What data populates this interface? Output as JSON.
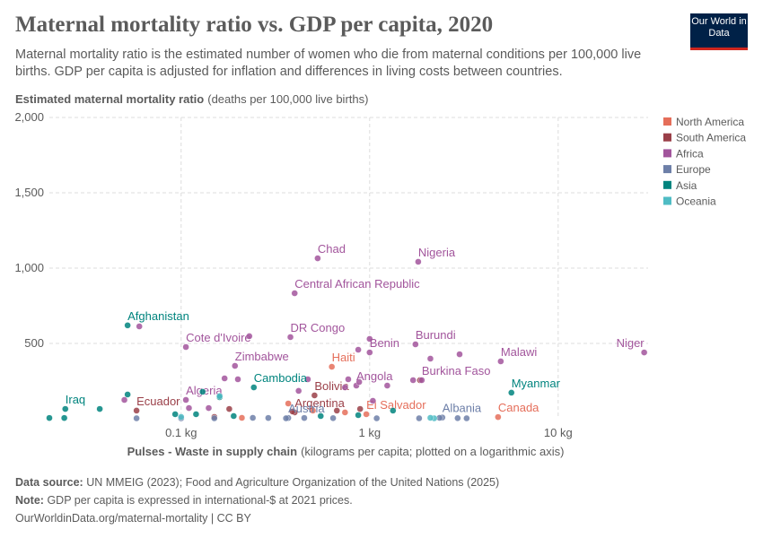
{
  "logo": "Our World in Data",
  "chart_data": {
    "type": "scatter",
    "title": "Maternal mortality ratio vs. GDP per capita, 2020",
    "subtitle": "Maternal mortality ratio is the estimated number of women who die from maternal conditions per 100,000 live births. GDP per capita is adjusted for inflation and differences in living costs between countries.",
    "y_label": "Estimated maternal mortality ratio",
    "y_label_unit": "(deaths per 100,000 live births)",
    "x_label": "Pulses - Waste in supply chain",
    "x_label_unit": "(kilograms per capita; plotted on a logarithmic axis)",
    "x_log": true,
    "grid": true,
    "legend_position": "right",
    "xlim": [
      0.02,
      30
    ],
    "xticks": [
      {
        "value": 0.1,
        "label": "0.1 kg"
      },
      {
        "value": 1,
        "label": "1 kg"
      },
      {
        "value": 10,
        "label": "10 kg"
      }
    ],
    "ylim": [
      0,
      2000
    ],
    "yticks": [
      500,
      {
        "value": 1000,
        "label": "1,000"
      },
      {
        "value": 1500,
        "label": "1,500"
      },
      {
        "value": 2000,
        "label": "2,000"
      }
    ],
    "series": [
      {
        "name": "North America",
        "color": "#e56e5a",
        "x": [
          0.63,
          0.96,
          4.8,
          0.37,
          0.5,
          0.21,
          0.74
        ],
        "values": [
          345,
          30,
          11,
          101,
          54,
          6,
          42
        ],
        "labels": [
          "Haiti",
          "El Salvador",
          "Canada",
          null,
          null,
          null,
          null
        ]
      },
      {
        "name": "South America",
        "color": "#9a3f48",
        "x": [
          0.51,
          0.058,
          0.4,
          0.15,
          0.18,
          0.39,
          0.67,
          0.89,
          1.85
        ],
        "values": [
          155,
          54,
          42,
          12,
          65,
          48,
          54,
          65,
          256
        ],
        "labels": [
          "Bolivia",
          "Ecuador",
          "Argentina",
          null,
          null,
          null,
          null,
          null,
          null
        ]
      },
      {
        "name": "Africa",
        "color": "#a2559c",
        "x": [
          0.53,
          1.81,
          0.4,
          0.38,
          1.0,
          1.75,
          0.106,
          28.6,
          4.96,
          0.193,
          1.89,
          0.85,
          0.106,
          0.87,
          1.0,
          2.1,
          3.0,
          0.23,
          0.47,
          0.42,
          0.77,
          1.04,
          1.24,
          1.7,
          0.17,
          0.2,
          0.14,
          0.11,
          0.06,
          0.05,
          0.74,
          0.88
        ],
        "values": [
          1065,
          1042,
          833,
          542,
          440,
          494,
          476,
          440,
          381,
          351,
          256,
          220,
          125,
          458,
          530,
          399,
          428,
          548,
          262,
          185,
          262,
          119,
          220,
          256,
          268,
          262,
          71,
          71,
          613,
          125,
          208,
          244
        ],
        "labels": [
          "Chad",
          "Nigeria",
          "Central African Republic",
          "DR Congo",
          "Benin",
          "Burundi",
          "Cote d'Ivoire",
          "Niger",
          "Malawi",
          "Zimbabwe",
          "Burkina Faso",
          "Angola",
          "Algeria",
          null,
          null,
          null,
          null,
          null,
          null,
          null,
          null,
          null,
          null,
          null,
          null,
          null,
          null,
          null,
          null,
          null,
          null,
          null
        ]
      },
      {
        "name": "Europe",
        "color": "#6d7fa8",
        "x": [
          0.37,
          2.43,
          0.058,
          0.1,
          0.15,
          0.24,
          0.29,
          0.36,
          0.45,
          0.64,
          1.09,
          1.83,
          2.93,
          3.27,
          2.35
        ],
        "values": [
          5,
          8,
          3,
          3,
          3,
          6,
          5,
          3,
          5,
          4,
          3,
          3,
          4,
          3,
          6
        ],
        "labels": [
          "Austria",
          "Albania",
          null,
          null,
          null,
          null,
          null,
          null,
          null,
          null,
          null,
          null,
          null,
          null,
          null
        ]
      },
      {
        "name": "Asia",
        "color": "#00847e",
        "x": [
          0.052,
          0.243,
          5.65,
          0.0243,
          0.052,
          0.037,
          0.024,
          0.02,
          0.13,
          0.16,
          0.093,
          0.12,
          0.19,
          0.55,
          0.87,
          1.33
        ],
        "values": [
          620,
          208,
          173,
          65,
          161,
          65,
          5,
          5,
          179,
          143,
          30,
          30,
          18,
          18,
          24,
          54
        ],
        "labels": [
          "Afghanistan",
          "Cambodia",
          "Myanmar",
          "Iraq",
          null,
          null,
          null,
          null,
          null,
          null,
          null,
          null,
          null,
          null,
          null,
          null
        ]
      },
      {
        "name": "Oceania",
        "color": "#4fbcc4",
        "x": [
          2.2,
          0.1,
          0.16,
          2.1
        ],
        "values": [
          3,
          12,
          150,
          6
        ],
        "labels": [
          null,
          null,
          null,
          null
        ]
      }
    ]
  },
  "footer": {
    "source_label": "Data source:",
    "source": "UN MMEIG (2023); Food and Agriculture Organization of the United Nations (2025)",
    "note_label": "Note:",
    "note": "GDP per capita is expressed in international-$ at 2021 prices.",
    "url": "OurWorldinData.org/maternal-mortality | CC BY"
  }
}
